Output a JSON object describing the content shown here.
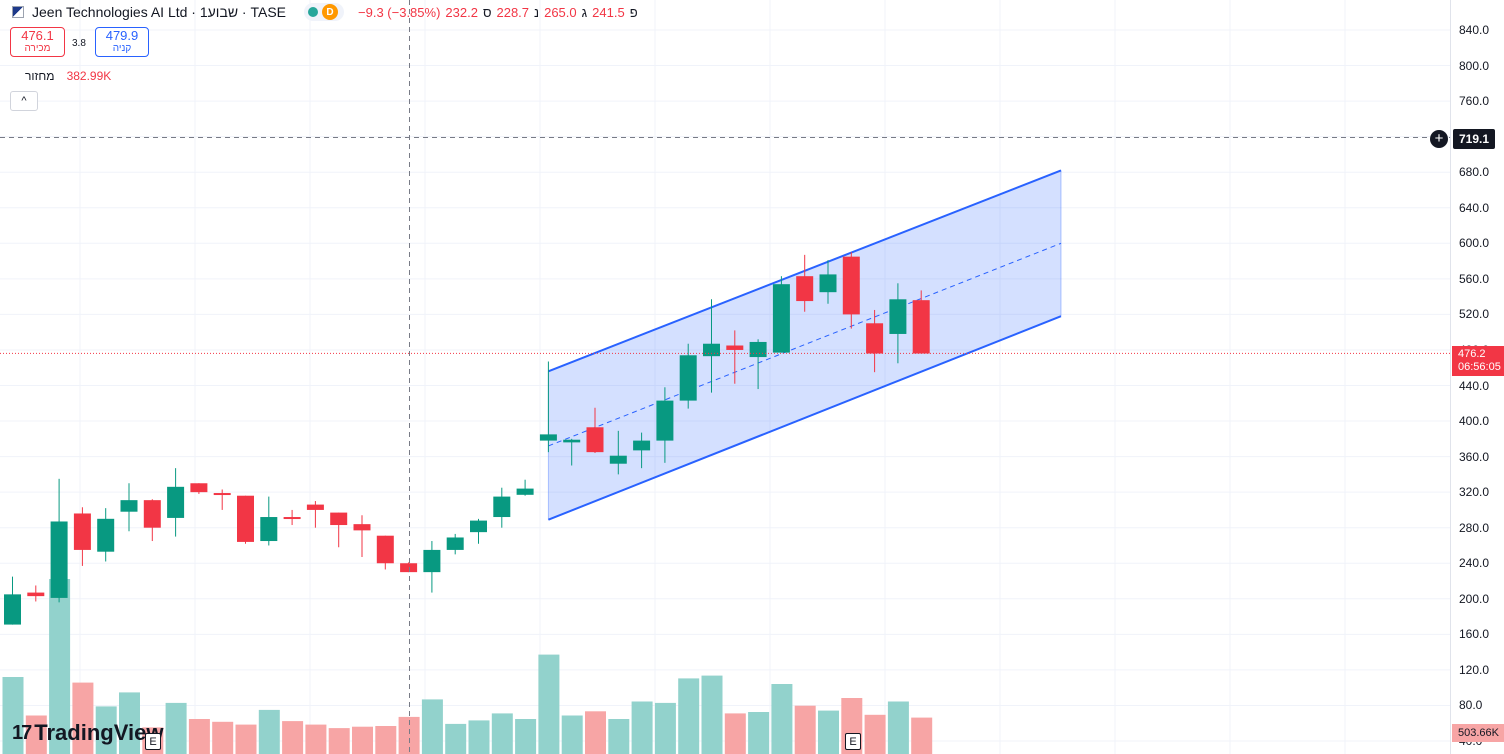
{
  "header": {
    "title": "Jeen Technologies AI Ltd · 1שבוע · TASE",
    "badge_letter": "D",
    "ohlc": {
      "open_key": "פ",
      "open": "241.5",
      "high_key": "ג",
      "high": "265.0",
      "low_key": "נ",
      "low": "228.7",
      "close_key": "ס",
      "close": "232.2",
      "change": "−9.3 (−3.85%)"
    }
  },
  "quote": {
    "sell_price": "476.1",
    "sell_label": "מכירה",
    "spread": "3.8",
    "buy_price": "479.9",
    "buy_label": "קניה"
  },
  "volume_legend": {
    "label": "מחזור",
    "value": "382.99K"
  },
  "collapse_glyph": "^",
  "price_axis": {
    "labels": [
      "840.0",
      "800.0",
      "760.0",
      "720.0",
      "680.0",
      "640.0",
      "600.0",
      "560.0",
      "520.0",
      "480.0",
      "440.0",
      "400.0",
      "360.0",
      "320.0",
      "280.0",
      "240.0",
      "200.0",
      "160.0",
      "120.0",
      "80.0",
      "40.0"
    ],
    "crosshair_price": "719.1",
    "last_price": "476.2",
    "countdown": "06:56:05",
    "volume_tag": "503.66K"
  },
  "colors": {
    "up": "#089981",
    "down": "#f23645",
    "vol_up": "#92d2cc",
    "vol_down": "#f7a5a5",
    "channel": "#2962ff"
  },
  "logo_text": "TradingView",
  "event_badge": "E",
  "chart_data": {
    "type": "candlestick",
    "symbol": "Jeen Technologies AI Ltd",
    "interval": "1שבוע",
    "exchange": "TASE",
    "ylim": [
      40,
      840
    ],
    "candles": [
      {
        "o": 171,
        "h": 225,
        "l": 171,
        "c": 205,
        "v": 110
      },
      {
        "o": 207,
        "h": 215,
        "l": 197,
        "c": 203,
        "v": 55
      },
      {
        "o": 201,
        "h": 335,
        "l": 196,
        "c": 287,
        "v": 250
      },
      {
        "o": 296,
        "h": 303,
        "l": 237,
        "c": 255,
        "v": 102
      },
      {
        "o": 253,
        "h": 302,
        "l": 242,
        "c": 290,
        "v": 68
      },
      {
        "o": 298,
        "h": 330,
        "l": 276,
        "c": 311,
        "v": 88
      },
      {
        "o": 311,
        "h": 312,
        "l": 265,
        "c": 280,
        "v": 38
      },
      {
        "o": 291,
        "h": 347,
        "l": 270,
        "c": 326,
        "v": 73
      },
      {
        "o": 330,
        "h": 330,
        "l": 318,
        "c": 320,
        "v": 50
      },
      {
        "o": 319,
        "h": 323,
        "l": 300,
        "c": 318,
        "v": 46
      },
      {
        "o": 316,
        "h": 316,
        "l": 262,
        "c": 264,
        "v": 42
      },
      {
        "o": 265,
        "h": 315,
        "l": 260,
        "c": 292,
        "v": 63
      },
      {
        "o": 292,
        "h": 300,
        "l": 283,
        "c": 290,
        "v": 47
      },
      {
        "o": 306,
        "h": 310,
        "l": 280,
        "c": 300,
        "v": 42
      },
      {
        "o": 297,
        "h": 297,
        "l": 258,
        "c": 283,
        "v": 37
      },
      {
        "o": 284,
        "h": 294,
        "l": 247,
        "c": 277,
        "v": 39
      },
      {
        "o": 271,
        "h": 271,
        "l": 233,
        "c": 240,
        "v": 40
      },
      {
        "o": 240,
        "h": 241,
        "l": 230,
        "c": 230,
        "v": 53
      },
      {
        "o": 230,
        "h": 265,
        "l": 207,
        "c": 255,
        "v": 78
      },
      {
        "o": 255,
        "h": 273,
        "l": 250,
        "c": 269,
        "v": 43
      },
      {
        "o": 275,
        "h": 290,
        "l": 262,
        "c": 288,
        "v": 48
      },
      {
        "o": 292,
        "h": 325,
        "l": 280,
        "c": 315,
        "v": 58
      },
      {
        "o": 317,
        "h": 334,
        "l": 316,
        "c": 324,
        "v": 50
      },
      {
        "o": 378,
        "h": 467,
        "l": 365,
        "c": 385,
        "v": 142
      },
      {
        "o": 376,
        "h": 380,
        "l": 350,
        "c": 379,
        "v": 55
      },
      {
        "o": 393,
        "h": 415,
        "l": 364,
        "c": 365,
        "v": 61
      },
      {
        "o": 352,
        "h": 389,
        "l": 340,
        "c": 361,
        "v": 50
      },
      {
        "o": 367,
        "h": 387,
        "l": 347,
        "c": 378,
        "v": 75
      },
      {
        "o": 378,
        "h": 438,
        "l": 353,
        "c": 423,
        "v": 73
      },
      {
        "o": 423,
        "h": 487,
        "l": 414,
        "c": 474,
        "v": 108
      },
      {
        "o": 473,
        "h": 537,
        "l": 432,
        "c": 487,
        "v": 112
      },
      {
        "o": 485,
        "h": 502,
        "l": 442,
        "c": 480,
        "v": 58
      },
      {
        "o": 472,
        "h": 492,
        "l": 436,
        "c": 489,
        "v": 60
      },
      {
        "o": 477,
        "h": 563,
        "l": 477,
        "c": 554,
        "v": 100
      },
      {
        "o": 563,
        "h": 587,
        "l": 523,
        "c": 535,
        "v": 69
      },
      {
        "o": 545,
        "h": 581,
        "l": 532,
        "c": 565,
        "v": 62
      },
      {
        "o": 585,
        "h": 590,
        "l": 504,
        "c": 520,
        "v": 80
      },
      {
        "o": 510,
        "h": 525,
        "l": 455,
        "c": 476,
        "v": 56
      },
      {
        "o": 498,
        "h": 555,
        "l": 465,
        "c": 537,
        "v": 75
      },
      {
        "o": 536,
        "h": 547,
        "l": 476,
        "c": 476,
        "v": 52
      }
    ],
    "channel": {
      "upper": [
        [
          23,
          456
        ],
        [
          45,
          682
        ]
      ],
      "middle": [
        [
          23,
          372
        ],
        [
          45,
          600
        ]
      ],
      "lower": [
        [
          23,
          289
        ],
        [
          45,
          518
        ]
      ]
    },
    "last_price": 476.2,
    "crosshair_price": 719.1
  }
}
